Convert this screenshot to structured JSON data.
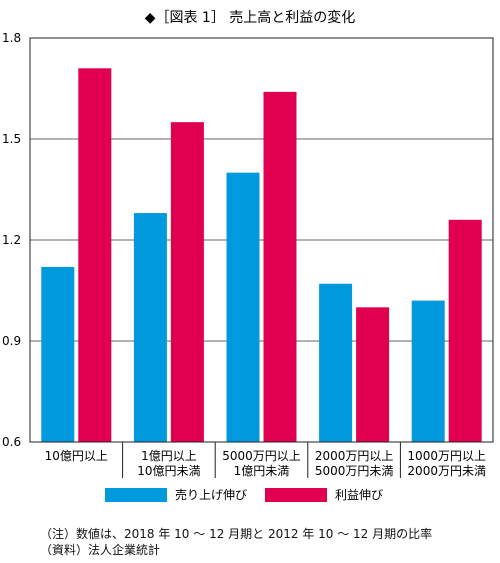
{
  "chart_data": {
    "type": "bar",
    "title": "◆［図表 1］ 売上高と利益の変化",
    "categories": [
      [
        "10億円以上"
      ],
      [
        "1億円以上",
        "10億円未満"
      ],
      [
        "5000万円以上",
        "1億円未満"
      ],
      [
        "2000万円以上",
        "5000万円未満"
      ],
      [
        "1000万円以上",
        "2000万円未満"
      ]
    ],
    "series": [
      {
        "name": "売り上げ伸び",
        "color": "#0099dd",
        "values": [
          1.12,
          1.28,
          1.4,
          1.07,
          1.02
        ]
      },
      {
        "name": "利益伸び",
        "color": "#e0004f",
        "values": [
          1.71,
          1.55,
          1.64,
          1.0,
          1.26
        ]
      }
    ],
    "ylim": [
      0.6,
      1.8
    ],
    "yticks": [
      "0.6",
      "0.9",
      "1.2",
      "1.5",
      "1.8"
    ],
    "grid": true,
    "legend_position": "bottom"
  },
  "notes": [
    "（注）数値は、2018 年 10 ～ 12 月期と 2012 年 10 ～ 12 月期の比率",
    "（資料）法人企業統計"
  ]
}
